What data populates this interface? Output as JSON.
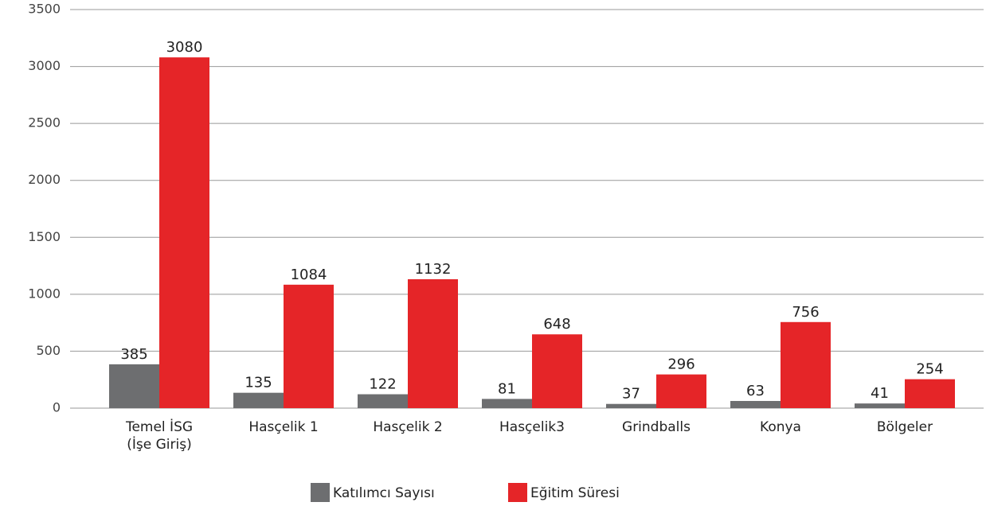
{
  "chart_data": {
    "type": "bar",
    "categories": [
      "Temel İSG\n(İşe Giriş)",
      "Hasçelik 1",
      "Hasçelik 2",
      "Hasçelik3",
      "Grindballs",
      "Konya",
      "Bölgeler"
    ],
    "series": [
      {
        "name": "Katılımcı Sayısı",
        "color": "#6d6e70",
        "values": [
          385,
          135,
          122,
          81,
          37,
          63,
          41
        ]
      },
      {
        "name": "Eğitim Süresi",
        "color": "#e52528",
        "values": [
          3080,
          1084,
          1132,
          648,
          296,
          756,
          254
        ]
      }
    ],
    "ylim": [
      0,
      3500
    ],
    "yticks": [
      0,
      500,
      1000,
      1500,
      2000,
      2500,
      3000,
      3500
    ],
    "grid": true,
    "legend": "bottom"
  }
}
